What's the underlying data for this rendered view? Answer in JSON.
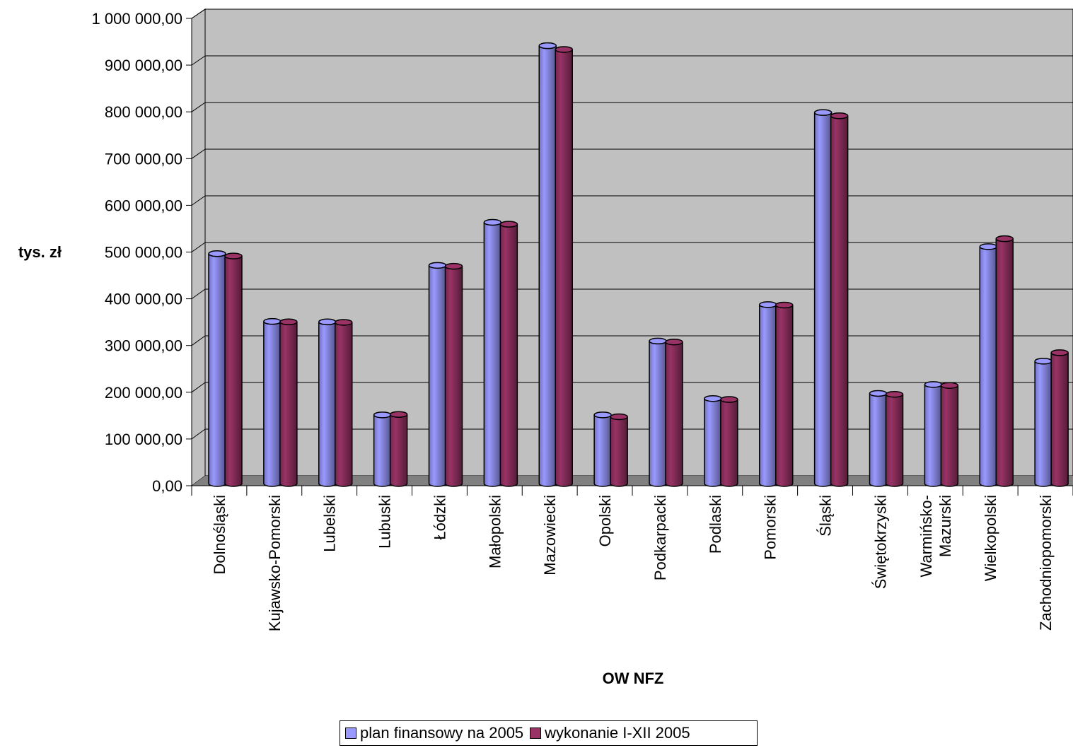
{
  "chart_data": {
    "type": "bar",
    "title": "",
    "ylabel": "tys. zł",
    "xlabel": "OW NFZ",
    "ylim": [
      0,
      1000000
    ],
    "y_ticks": [
      "0,00",
      "100 000,00",
      "200 000,00",
      "300 000,00",
      "400 000,00",
      "500 000,00",
      "600 000,00",
      "700 000,00",
      "800 000,00",
      "900 000,00",
      "1 000 000,00"
    ],
    "categories": [
      "Dolnośląski",
      "Kujawsko-Pomorski",
      "Lubelski",
      "Lubuski",
      "Łódzki",
      "Małopolski",
      "Mazowiecki",
      "Opolski",
      "Podkarpacki",
      "Podlaski",
      "Pomorski",
      "Śląski",
      "Świętokrzyski",
      "Warmińsko-Mazurski",
      "Wielkopolski",
      "Zachodniopomorski"
    ],
    "category_label_lines": [
      [
        "Dolnośląski"
      ],
      [
        "Kujawsko-Pomorski"
      ],
      [
        "Lubelski"
      ],
      [
        "Lubuski"
      ],
      [
        "Łódzki"
      ],
      [
        "Małopolski"
      ],
      [
        "Mazowiecki"
      ],
      [
        "Opolski"
      ],
      [
        "Podkarpacki"
      ],
      [
        "Podlaski"
      ],
      [
        "Pomorski"
      ],
      [
        "Śląski"
      ],
      [
        "Świętokrzyski"
      ],
      [
        "Warmińsko-",
        "Mazurski"
      ],
      [
        "Wielkopolski"
      ],
      [
        "Zachodniopomorski"
      ]
    ],
    "series": [
      {
        "name": "plan finansowy na 2005",
        "color": "#9999ff",
        "values": [
          495000,
          350000,
          349000,
          150000,
          470000,
          562000,
          940000,
          150000,
          308000,
          185000,
          386000,
          797000,
          196000,
          215000,
          510000,
          265000
        ]
      },
      {
        "name": "wykonanie I-XII 2005",
        "color": "#993366",
        "values": [
          490000,
          349000,
          348000,
          151000,
          468000,
          558000,
          932000,
          146000,
          306000,
          183000,
          385000,
          790000,
          194000,
          213000,
          527000,
          283000
        ]
      }
    ],
    "grid": true,
    "legend_position": "bottom"
  }
}
